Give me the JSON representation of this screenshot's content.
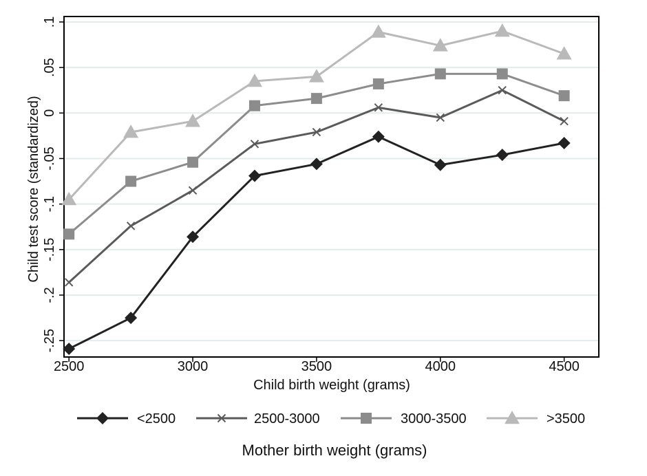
{
  "chart_data": {
    "type": "line",
    "title": "",
    "xlabel": "Child birth weight (grams)",
    "ylabel": "Child test score (standardized)",
    "legend_title": "Mother birth weight (grams)",
    "legend_position": "bottom",
    "grid": true,
    "xlim": [
      2480,
      4640
    ],
    "ylim": [
      -0.268,
      0.106
    ],
    "x": [
      2500,
      2750,
      3000,
      3250,
      3500,
      3750,
      4000,
      4250,
      4500
    ],
    "xticks": [
      2500,
      3000,
      3500,
      4000,
      4500
    ],
    "xtick_labels": [
      "2500",
      "3000",
      "3500",
      "4000",
      "4500"
    ],
    "yticks": [
      -0.25,
      -0.2,
      -0.15,
      -0.1,
      -0.05,
      0,
      0.05,
      0.1
    ],
    "ytick_labels": [
      "-.25",
      "-.2",
      "-.15",
      "-.1",
      "-.05",
      "0",
      ".05",
      ".1"
    ],
    "series": [
      {
        "name": "<2500",
        "color": "#222222",
        "marker": "diamond",
        "values": [
          -0.259,
          -0.225,
          -0.136,
          -0.069,
          -0.056,
          -0.026,
          -0.057,
          -0.046,
          -0.033
        ]
      },
      {
        "name": "2500-3000",
        "color": "#5a5a5a",
        "marker": "x",
        "values": [
          -0.186,
          -0.124,
          -0.085,
          -0.034,
          -0.021,
          0.006,
          -0.005,
          0.025,
          -0.009
        ]
      },
      {
        "name": "3000-3500",
        "color": "#8c8c8c",
        "marker": "square",
        "values": [
          -0.133,
          -0.075,
          -0.054,
          0.008,
          0.016,
          0.032,
          0.043,
          0.043,
          0.019
        ]
      },
      {
        "name": ">3500",
        "color": "#b9b9b9",
        "marker": "triangle",
        "values": [
          -0.095,
          -0.021,
          -0.009,
          0.035,
          0.04,
          0.089,
          0.074,
          0.09,
          0.065
        ]
      }
    ]
  }
}
